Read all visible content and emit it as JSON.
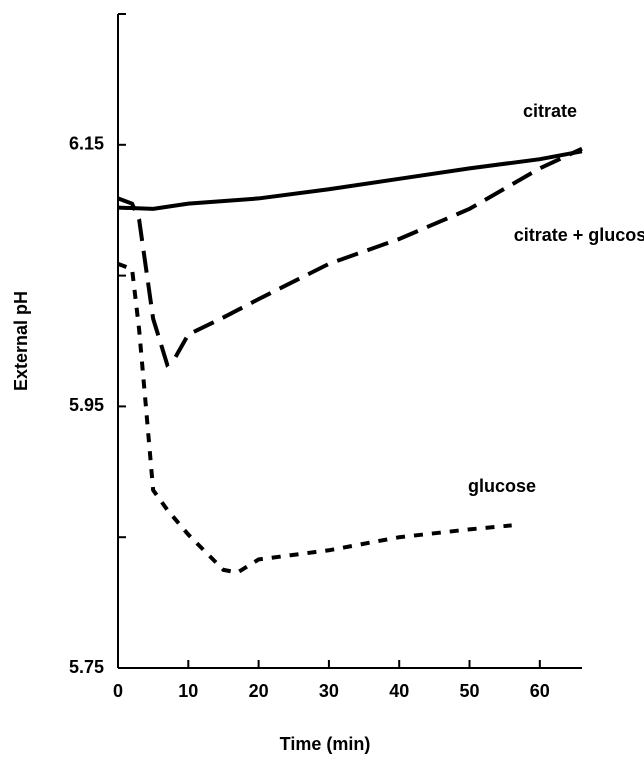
{
  "chart_data": {
    "type": "line",
    "x_label": "Time (min)",
    "y_label": "External pH",
    "xlim": [
      0,
      66
    ],
    "xticks": [
      0,
      10,
      20,
      30,
      40,
      50,
      60
    ],
    "ylim": [
      5.75,
      6.25
    ],
    "yticks": [
      5.75,
      5.95,
      6.15
    ],
    "yticks_minor": [
      5.85,
      6.05,
      6.25
    ],
    "series": [
      {
        "name": "citrate",
        "color": "#000000",
        "dash": "solid",
        "x": [
          0,
          5,
          10,
          20,
          30,
          40,
          50,
          60,
          66
        ],
        "values": [
          6.102,
          6.101,
          6.105,
          6.109,
          6.116,
          6.124,
          6.132,
          6.139,
          6.145
        ]
      },
      {
        "name": "citrate + glucose",
        "color": "#000000",
        "dash": "dashed",
        "x": [
          0,
          2,
          3,
          5,
          7,
          8,
          10,
          15,
          20,
          30,
          40,
          50,
          60,
          66
        ],
        "values": [
          6.109,
          6.105,
          6.093,
          6.017,
          5.982,
          5.986,
          6.005,
          6.018,
          6.032,
          6.059,
          6.078,
          6.101,
          6.132,
          6.147
        ]
      },
      {
        "name": "glucose",
        "color": "#000000",
        "dash": "dotted",
        "x": [
          0,
          2,
          3,
          4,
          5,
          7,
          10,
          15,
          17,
          20,
          30,
          40,
          50,
          56
        ],
        "values": [
          6.059,
          6.055,
          6.009,
          5.948,
          5.886,
          5.871,
          5.852,
          5.825,
          5.823,
          5.833,
          5.84,
          5.85,
          5.856,
          5.859
        ]
      }
    ]
  }
}
